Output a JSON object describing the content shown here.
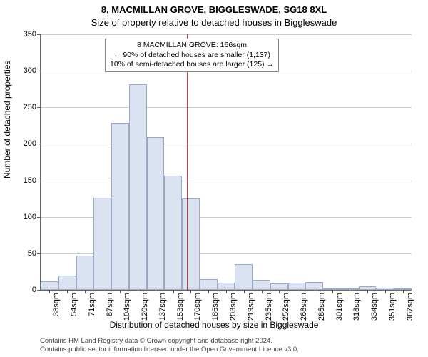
{
  "title_main": "8, MACMILLAN GROVE, BIGGLESWADE, SG18 8XL",
  "title_sub": "Size of property relative to detached houses in Biggleswade",
  "ylabel": "Number of detached properties",
  "xlabel": "Distribution of detached houses by size in Biggleswade",
  "chart": {
    "type": "histogram",
    "background_color": "#ffffff",
    "grid_color": "#cccccc",
    "axis_color": "#666666",
    "bar_fill": "#dbe3f3",
    "bar_stroke": "#9aa9c8",
    "bar_width_ratio": 1.0,
    "ylim": [
      0,
      350
    ],
    "ytick_step": 50,
    "yticks": [
      0,
      50,
      100,
      150,
      200,
      250,
      300,
      350
    ],
    "x_categories": [
      "38sqm",
      "54sqm",
      "71sqm",
      "87sqm",
      "104sqm",
      "120sqm",
      "137sqm",
      "153sqm",
      "170sqm",
      "186sqm",
      "203sqm",
      "219sqm",
      "235sqm",
      "252sqm",
      "268sqm",
      "285sqm",
      "301sqm",
      "318sqm",
      "334sqm",
      "351sqm",
      "367sqm"
    ],
    "values": [
      12,
      20,
      47,
      126,
      229,
      282,
      209,
      156,
      125,
      15,
      10,
      35,
      14,
      9,
      10,
      11,
      0,
      2,
      5,
      3,
      2
    ],
    "tick_fontsize": 11,
    "label_fontsize": 12,
    "title_fontsize": 13
  },
  "reference_line": {
    "value_sqm": 166,
    "color": "#d9352c",
    "width": 1
  },
  "annotation": {
    "line1": "8 MACMILLAN GROVE: 166sqm",
    "line2": "← 90% of detached houses are smaller (1,137)",
    "line3": "10% of semi-detached houses are larger (125) →",
    "border_color": "#888888",
    "bg_color": "#ffffff",
    "fontsize": 10.5
  },
  "license": {
    "line1": "Contains HM Land Registry data © Crown copyright and database right 2024.",
    "line2": "Contains public sector information licensed under the Open Government Licence v3.0."
  }
}
